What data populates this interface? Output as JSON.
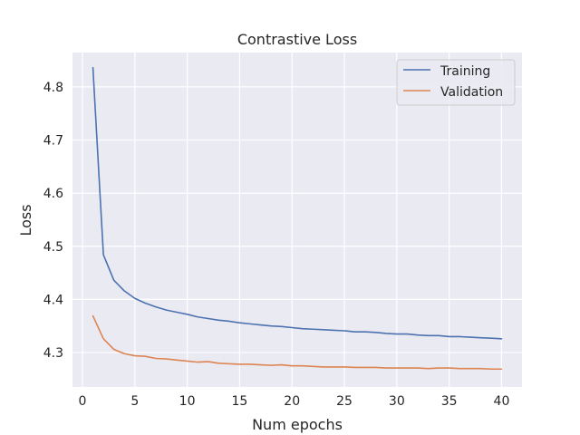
{
  "chart_data": {
    "type": "line",
    "title": "Contrastive Loss",
    "xlabel": "Num epochs",
    "ylabel": "Loss",
    "xlim": [
      -0.95,
      41.95
    ],
    "ylim": [
      4.2353,
      4.8645
    ],
    "x_ticks": [
      0,
      5,
      10,
      15,
      20,
      25,
      30,
      35,
      40
    ],
    "y_ticks": [
      4.3,
      4.4,
      4.5,
      4.6,
      4.7,
      4.8
    ],
    "x_tick_labels": [
      "0",
      "5",
      "10",
      "15",
      "20",
      "25",
      "30",
      "35",
      "40"
    ],
    "y_tick_labels": [
      "4.3",
      "4.4",
      "4.5",
      "4.6",
      "4.7",
      "4.8"
    ],
    "grid": true,
    "legend_position": "top-right",
    "x": [
      1,
      2,
      3,
      4,
      5,
      6,
      7,
      8,
      9,
      10,
      11,
      12,
      13,
      14,
      15,
      16,
      17,
      18,
      19,
      20,
      21,
      22,
      23,
      24,
      25,
      26,
      27,
      28,
      29,
      30,
      31,
      32,
      33,
      34,
      35,
      36,
      37,
      38,
      39,
      40
    ],
    "series": [
      {
        "name": "Training",
        "color": "#4c72b0",
        "values": [
          4.836,
          4.484,
          4.436,
          4.416,
          4.402,
          4.393,
          4.386,
          4.38,
          4.376,
          4.372,
          4.367,
          4.364,
          4.361,
          4.359,
          4.356,
          4.354,
          4.352,
          4.35,
          4.349,
          4.347,
          4.345,
          4.344,
          4.343,
          4.342,
          4.341,
          4.339,
          4.339,
          4.338,
          4.336,
          4.335,
          4.335,
          4.333,
          4.332,
          4.332,
          4.33,
          4.33,
          4.329,
          4.328,
          4.327,
          4.326
        ]
      },
      {
        "name": "Validation",
        "color": "#dd8452",
        "values": [
          4.369,
          4.326,
          4.306,
          4.298,
          4.294,
          4.293,
          4.289,
          4.288,
          4.286,
          4.284,
          4.282,
          4.283,
          4.28,
          4.279,
          4.278,
          4.278,
          4.277,
          4.276,
          4.277,
          4.275,
          4.275,
          4.274,
          4.273,
          4.273,
          4.273,
          4.272,
          4.272,
          4.272,
          4.271,
          4.271,
          4.271,
          4.271,
          4.27,
          4.271,
          4.271,
          4.27,
          4.27,
          4.27,
          4.269,
          4.269
        ]
      }
    ]
  },
  "style": {
    "plot_background": "#eaeaf2",
    "grid_color": "#ffffff",
    "legend_background": "#eaeaf2",
    "legend_border": "#cccccc"
  }
}
